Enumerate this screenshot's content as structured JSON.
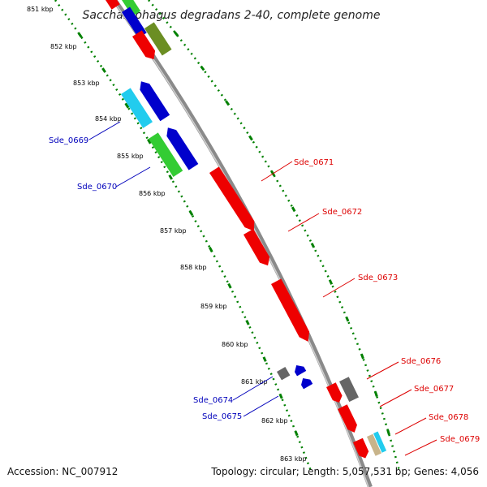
{
  "title": "Saccharophagus degradans 2-40, complete genome",
  "footer": {
    "accession": "Accession: NC_007912",
    "topology": "Topology: circular; Length: 5,057,531 bp; Genes: 4,056"
  },
  "colors": {
    "backbone": "#888888",
    "ticks": "#008000",
    "label_forward": "#dd0000",
    "label_reverse": "#0000bb",
    "gene_red": "#ee0000",
    "gene_blue": "#0000cc",
    "gene_green": "#33cc33",
    "gene_cyan": "#22ccee",
    "gene_olive": "#6b8e23",
    "gene_gray": "#666666",
    "gene_tan": "#c8b48a"
  },
  "kbp_ticks": [
    "851 kbp",
    "852 kbp",
    "853 kbp",
    "854 kbp",
    "855 kbp",
    "856 kbp",
    "857 kbp",
    "858 kbp",
    "859 kbp",
    "860 kbp",
    "861 kbp",
    "862 kbp",
    "863 kbp"
  ],
  "labels_reverse": [
    "Sde_0669",
    "Sde_0670",
    "Sde_0674",
    "Sde_0675"
  ],
  "labels_forward": [
    "Sde_0671",
    "Sde_0672",
    "Sde_0673",
    "Sde_0676",
    "Sde_0677",
    "Sde_0678",
    "Sde_0679"
  ]
}
